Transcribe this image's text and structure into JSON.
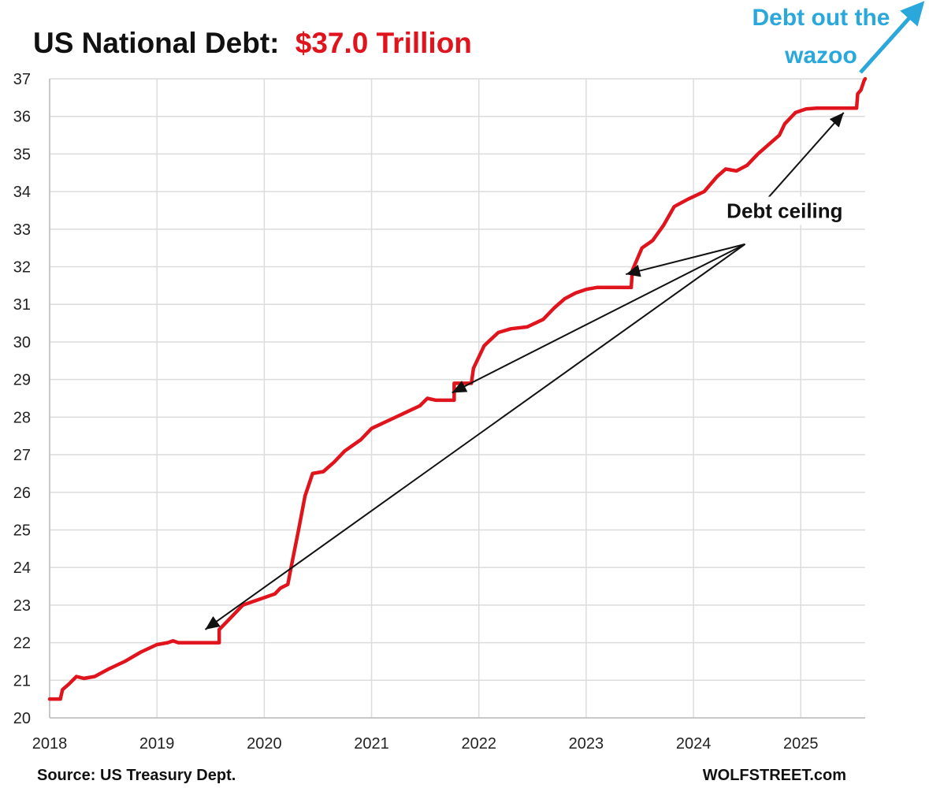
{
  "colors": {
    "series": "#e0141c",
    "title_value": "#e0141c",
    "accent_text": "#2aa8dc",
    "grid": "#dcdcdc",
    "arrow": "#111111"
  },
  "chart_data": {
    "type": "line",
    "title": "US National Debt:",
    "title_value": "$37.0 Trillion",
    "xlabel": "",
    "ylabel": "",
    "xlim": [
      2018,
      2025.6
    ],
    "ylim": [
      20,
      37
    ],
    "x_ticks": [
      "2018",
      "2019",
      "2020",
      "2021",
      "2022",
      "2023",
      "2024",
      "2025"
    ],
    "y_ticks": [
      "20",
      "21",
      "22",
      "23",
      "24",
      "25",
      "26",
      "27",
      "28",
      "29",
      "30",
      "31",
      "32",
      "33",
      "34",
      "35",
      "36",
      "37"
    ],
    "grid": true,
    "legend": "none",
    "series": [
      {
        "points": [
          [
            2018.0,
            20.5
          ],
          [
            2018.1,
            20.5
          ],
          [
            2018.12,
            20.75
          ],
          [
            2018.18,
            20.9
          ],
          [
            2018.25,
            21.1
          ],
          [
            2018.32,
            21.05
          ],
          [
            2018.42,
            21.1
          ],
          [
            2018.55,
            21.3
          ],
          [
            2018.7,
            21.5
          ],
          [
            2018.85,
            21.75
          ],
          [
            2019.0,
            21.95
          ],
          [
            2019.1,
            22.0
          ],
          [
            2019.15,
            22.05
          ],
          [
            2019.2,
            22.0
          ],
          [
            2019.58,
            22.0
          ],
          [
            2019.58,
            22.35
          ],
          [
            2019.7,
            22.7
          ],
          [
            2019.8,
            23.0
          ],
          [
            2019.95,
            23.15
          ],
          [
            2020.1,
            23.3
          ],
          [
            2020.15,
            23.45
          ],
          [
            2020.22,
            23.55
          ],
          [
            2020.25,
            24.0
          ],
          [
            2020.32,
            25.0
          ],
          [
            2020.38,
            25.9
          ],
          [
            2020.45,
            26.5
          ],
          [
            2020.55,
            26.55
          ],
          [
            2020.65,
            26.8
          ],
          [
            2020.75,
            27.1
          ],
          [
            2020.9,
            27.4
          ],
          [
            2021.0,
            27.7
          ],
          [
            2021.15,
            27.9
          ],
          [
            2021.3,
            28.1
          ],
          [
            2021.45,
            28.3
          ],
          [
            2021.52,
            28.5
          ],
          [
            2021.6,
            28.45
          ],
          [
            2021.77,
            28.45
          ],
          [
            2021.77,
            28.9
          ],
          [
            2021.93,
            28.9
          ],
          [
            2021.95,
            29.3
          ],
          [
            2022.05,
            29.9
          ],
          [
            2022.18,
            30.25
          ],
          [
            2022.3,
            30.35
          ],
          [
            2022.45,
            30.4
          ],
          [
            2022.6,
            30.6
          ],
          [
            2022.7,
            30.9
          ],
          [
            2022.8,
            31.15
          ],
          [
            2022.9,
            31.3
          ],
          [
            2023.0,
            31.4
          ],
          [
            2023.1,
            31.45
          ],
          [
            2023.42,
            31.45
          ],
          [
            2023.43,
            31.9
          ],
          [
            2023.52,
            32.5
          ],
          [
            2023.62,
            32.7
          ],
          [
            2023.72,
            33.1
          ],
          [
            2023.82,
            33.6
          ],
          [
            2023.95,
            33.8
          ],
          [
            2024.1,
            34.0
          ],
          [
            2024.22,
            34.4
          ],
          [
            2024.3,
            34.6
          ],
          [
            2024.4,
            34.55
          ],
          [
            2024.5,
            34.7
          ],
          [
            2024.6,
            35.0
          ],
          [
            2024.72,
            35.3
          ],
          [
            2024.8,
            35.5
          ],
          [
            2024.85,
            35.8
          ],
          [
            2024.95,
            36.1
          ],
          [
            2025.05,
            36.2
          ],
          [
            2025.15,
            36.22
          ],
          [
            2025.52,
            36.22
          ],
          [
            2025.53,
            36.6
          ],
          [
            2025.56,
            36.7
          ],
          [
            2025.59,
            36.95
          ],
          [
            2025.6,
            37.0
          ]
        ]
      }
    ],
    "annotations": [
      {
        "text": "Debt ceiling",
        "label_at": [
          2024.85,
          33.3
        ]
      },
      {
        "text": "Debt out the",
        "text2": "wazoo"
      }
    ],
    "ceiling_arrows": [
      {
        "from": [
          2024.48,
          32.6
        ],
        "to": [
          2019.45,
          22.35
        ]
      },
      {
        "from": [
          2024.48,
          32.6
        ],
        "to": [
          2021.75,
          28.65
        ]
      },
      {
        "from": [
          2024.48,
          32.6
        ],
        "to": [
          2023.37,
          31.8
        ]
      },
      {
        "from": [
          2024.7,
          33.85
        ],
        "to": [
          2025.4,
          36.1
        ]
      }
    ]
  },
  "footer": {
    "source": "Source: US Treasury Dept.",
    "brand": "WOLFSTREET.com"
  }
}
